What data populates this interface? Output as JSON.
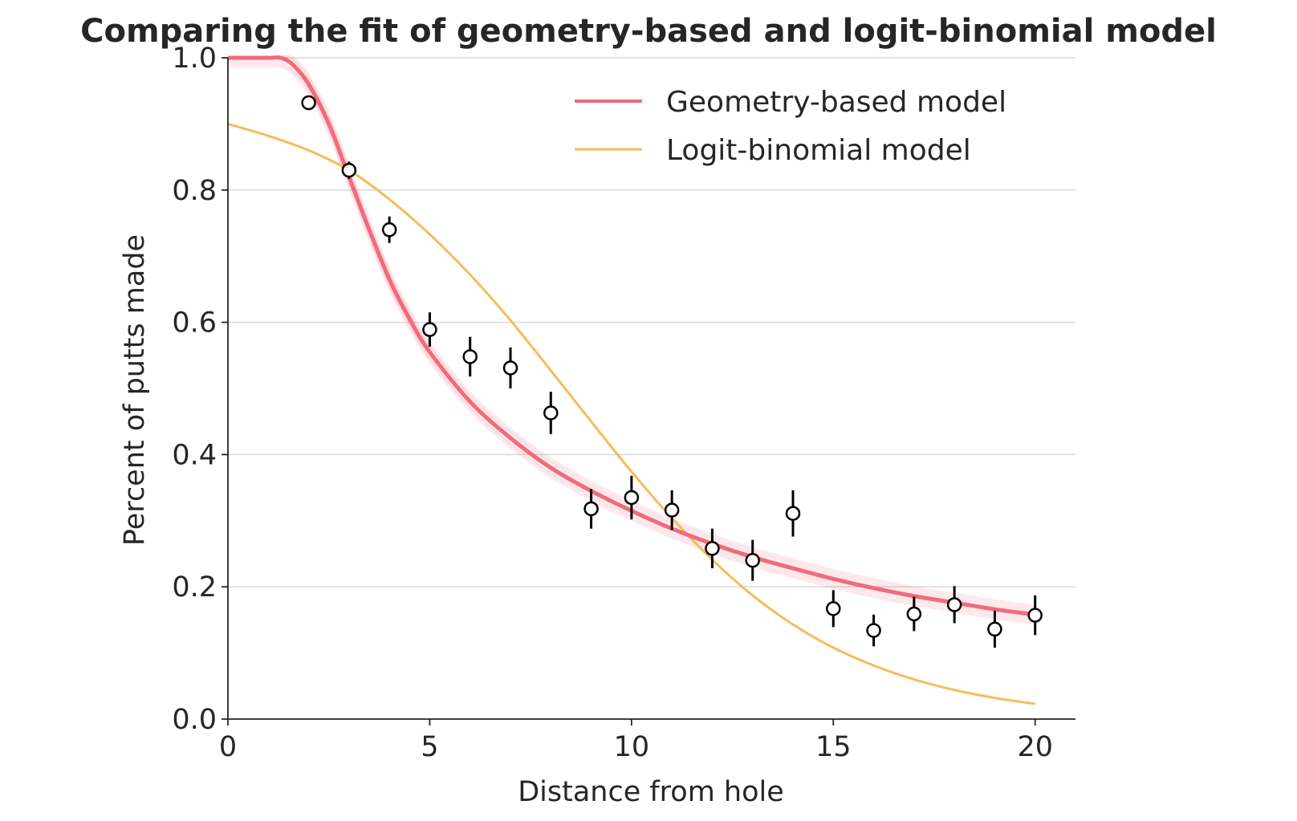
{
  "chart_data": {
    "type": "line",
    "title": "Comparing the fit of geometry-based and logit-binomial model",
    "xlabel": "Distance from hole",
    "ylabel": "Percent of putts made",
    "xlim": [
      0,
      21
    ],
    "ylim": [
      0,
      1.0
    ],
    "xticks": [
      0,
      5,
      10,
      15,
      20
    ],
    "yticks": [
      0.0,
      0.2,
      0.4,
      0.6,
      0.8,
      1.0
    ],
    "xtick_labels": [
      "0",
      "5",
      "10",
      "15",
      "20"
    ],
    "ytick_labels": [
      "0.0",
      "0.2",
      "0.4",
      "0.6",
      "0.8",
      "1.0"
    ],
    "grid": "horizontal",
    "legend_position": "top-right",
    "colors": {
      "geometry": "#f06b7f",
      "logit": "#f5bc5a",
      "points": "#000000",
      "grid": "#d9d9d9",
      "axis": "#262626"
    },
    "legend": [
      {
        "key": "geometry",
        "label": "Geometry-based model"
      },
      {
        "key": "logit",
        "label": "Logit-binomial model"
      }
    ],
    "observed": {
      "x": [
        2,
        3,
        4,
        5,
        6,
        7,
        8,
        9,
        10,
        11,
        12,
        13,
        14,
        15,
        16,
        17,
        18,
        19,
        20
      ],
      "y": [
        0.932,
        0.83,
        0.74,
        0.589,
        0.548,
        0.531,
        0.463,
        0.318,
        0.335,
        0.316,
        0.258,
        0.24,
        0.311,
        0.167,
        0.134,
        0.159,
        0.173,
        0.136,
        0.157
      ],
      "err": [
        0.006,
        0.013,
        0.02,
        0.026,
        0.03,
        0.031,
        0.032,
        0.03,
        0.033,
        0.03,
        0.03,
        0.031,
        0.035,
        0.028,
        0.024,
        0.026,
        0.028,
        0.028,
        0.03
      ]
    },
    "series": [
      {
        "key": "geometry",
        "x": [
          0,
          1,
          1.3,
          1.6,
          2,
          2.5,
          3,
          3.5,
          4,
          4.5,
          5,
          6,
          7,
          8,
          9,
          10,
          11,
          12,
          13,
          14,
          15,
          16,
          17,
          18,
          19,
          20
        ],
        "y": [
          1.0,
          1.0,
          1.0,
          0.99,
          0.96,
          0.9,
          0.82,
          0.74,
          0.665,
          0.605,
          0.555,
          0.48,
          0.425,
          0.38,
          0.345,
          0.315,
          0.288,
          0.265,
          0.245,
          0.228,
          0.212,
          0.198,
          0.186,
          0.176,
          0.166,
          0.158
        ]
      },
      {
        "key": "logit",
        "x": [
          0,
          1,
          2,
          3,
          4,
          5,
          6,
          7,
          8,
          9,
          10,
          11,
          12,
          13,
          14,
          15,
          16,
          17,
          18,
          19,
          20
        ],
        "y": [
          0.9,
          0.882,
          0.86,
          0.83,
          0.786,
          0.733,
          0.672,
          0.603,
          0.527,
          0.45,
          0.374,
          0.304,
          0.241,
          0.187,
          0.143,
          0.108,
          0.081,
          0.06,
          0.044,
          0.032,
          0.023
        ]
      }
    ]
  }
}
